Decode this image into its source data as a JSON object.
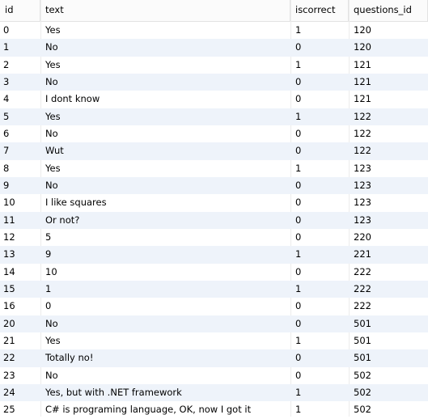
{
  "columns": {
    "id": "id",
    "text": "text",
    "iscorrect": "iscorrect",
    "questions_id": "questions_id"
  },
  "rows": [
    {
      "id": "0",
      "text": "Yes",
      "iscorrect": "1",
      "questions_id": "120"
    },
    {
      "id": "1",
      "text": "No",
      "iscorrect": "0",
      "questions_id": "120"
    },
    {
      "id": "2",
      "text": "Yes",
      "iscorrect": "1",
      "questions_id": "121"
    },
    {
      "id": "3",
      "text": "No",
      "iscorrect": "0",
      "questions_id": "121"
    },
    {
      "id": "4",
      "text": "I dont know",
      "iscorrect": "0",
      "questions_id": "121"
    },
    {
      "id": "5",
      "text": "Yes",
      "iscorrect": "1",
      "questions_id": "122"
    },
    {
      "id": "6",
      "text": "No",
      "iscorrect": "0",
      "questions_id": "122"
    },
    {
      "id": "7",
      "text": "Wut",
      "iscorrect": "0",
      "questions_id": "122"
    },
    {
      "id": "8",
      "text": "Yes",
      "iscorrect": "1",
      "questions_id": "123"
    },
    {
      "id": "9",
      "text": "No",
      "iscorrect": "0",
      "questions_id": "123"
    },
    {
      "id": "10",
      "text": "I like squares",
      "iscorrect": "0",
      "questions_id": "123"
    },
    {
      "id": "11",
      "text": "Or not?",
      "iscorrect": "0",
      "questions_id": "123"
    },
    {
      "id": "12",
      "text": "5",
      "iscorrect": "0",
      "questions_id": "220"
    },
    {
      "id": "13",
      "text": "9",
      "iscorrect": "1",
      "questions_id": "221"
    },
    {
      "id": "14",
      "text": "10",
      "iscorrect": "0",
      "questions_id": "222"
    },
    {
      "id": "15",
      "text": "1",
      "iscorrect": "1",
      "questions_id": "222"
    },
    {
      "id": "16",
      "text": "0",
      "iscorrect": "0",
      "questions_id": "222"
    },
    {
      "id": "20",
      "text": "No",
      "iscorrect": "0",
      "questions_id": "501"
    },
    {
      "id": "21",
      "text": "Yes",
      "iscorrect": "1",
      "questions_id": "501"
    },
    {
      "id": "22",
      "text": "Totally no!",
      "iscorrect": "0",
      "questions_id": "501"
    },
    {
      "id": "23",
      "text": "No",
      "iscorrect": "0",
      "questions_id": "502"
    },
    {
      "id": "24",
      "text": "Yes, but with .NET framework",
      "iscorrect": "1",
      "questions_id": "502"
    },
    {
      "id": "25",
      "text": "C# is programing language, OK, now I got it",
      "iscorrect": "1",
      "questions_id": "502"
    }
  ],
  "colors": {
    "alt_row": "#eef3fa",
    "header_bg": "#fbfbfb",
    "grid_line": "#e3e3e3"
  }
}
